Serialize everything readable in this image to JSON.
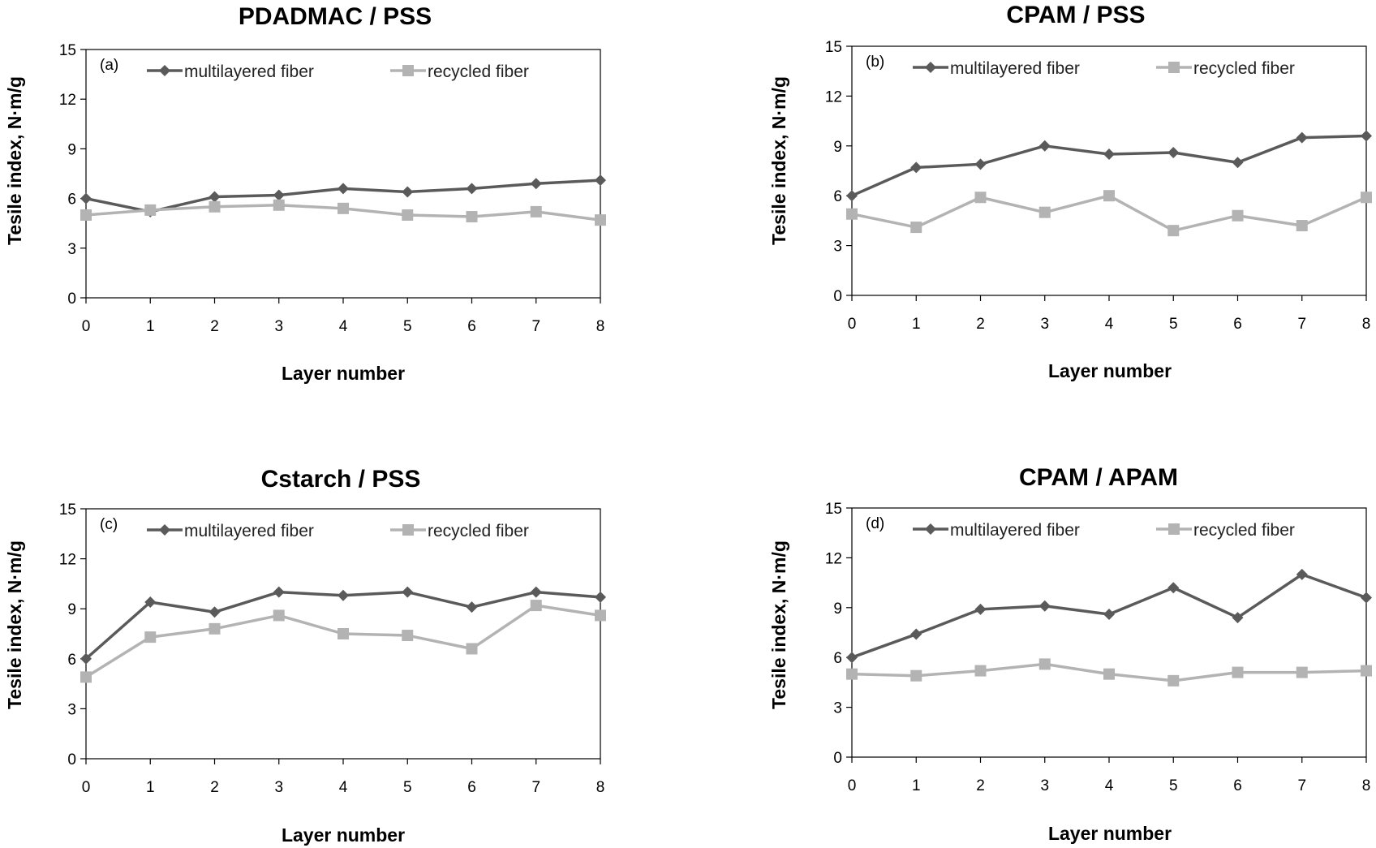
{
  "colors": {
    "multilayered": "#5a5a5a",
    "recycled": "#b3b3b3"
  },
  "chart_data": [
    {
      "type": "line",
      "title": "PDADMAC / PSS",
      "panel_label": "(a)",
      "xlabel": "Layer number",
      "ylabel": "Tesile index, N·m/g",
      "ylim": [
        0,
        15
      ],
      "yticks": [
        "0",
        "3",
        "6",
        "9",
        "12",
        "15"
      ],
      "x": [
        "0",
        "1",
        "2",
        "3",
        "4",
        "5",
        "6",
        "7",
        "8"
      ],
      "legend_position": "top",
      "series": [
        {
          "name": "multilayered fiber",
          "marker": "diamond",
          "values": [
            6.0,
            5.2,
            6.1,
            6.2,
            6.6,
            6.4,
            6.6,
            6.9,
            7.1
          ]
        },
        {
          "name": "recycled fiber",
          "marker": "square",
          "values": [
            5.0,
            5.3,
            5.5,
            5.6,
            5.4,
            5.0,
            4.9,
            5.2,
            4.7
          ]
        }
      ]
    },
    {
      "type": "line",
      "title": "CPAM / PSS",
      "panel_label": "(b)",
      "xlabel": "Layer number",
      "ylabel": "Tesile index, N·m/g",
      "ylim": [
        0,
        15
      ],
      "yticks": [
        "0",
        "3",
        "6",
        "9",
        "12",
        "15"
      ],
      "x": [
        "0",
        "1",
        "2",
        "3",
        "4",
        "5",
        "6",
        "7",
        "8"
      ],
      "legend_position": "top",
      "series": [
        {
          "name": "multilayered fiber",
          "marker": "diamond",
          "values": [
            6.0,
            7.7,
            7.9,
            9.0,
            8.5,
            8.6,
            8.0,
            9.5,
            9.6
          ]
        },
        {
          "name": "recycled fiber",
          "marker": "square",
          "values": [
            4.9,
            4.1,
            5.9,
            5.0,
            6.0,
            3.9,
            4.8,
            4.2,
            5.9
          ]
        }
      ]
    },
    {
      "type": "line",
      "title": "Cstarch / PSS",
      "panel_label": "(c)",
      "xlabel": "Layer number",
      "ylabel": "Tesile index, N·m/g",
      "ylim": [
        0,
        15
      ],
      "yticks": [
        "0",
        "3",
        "6",
        "9",
        "12",
        "15"
      ],
      "x": [
        "0",
        "1",
        "2",
        "3",
        "4",
        "5",
        "6",
        "7",
        "8"
      ],
      "legend_position": "top",
      "series": [
        {
          "name": "multilayered fiber",
          "marker": "diamond",
          "values": [
            6.0,
            9.4,
            8.8,
            10.0,
            9.8,
            10.0,
            9.1,
            10.0,
            9.7
          ]
        },
        {
          "name": "recycled fiber",
          "marker": "square",
          "values": [
            4.9,
            7.3,
            7.8,
            8.6,
            7.5,
            7.4,
            6.6,
            9.2,
            8.6
          ]
        }
      ]
    },
    {
      "type": "line",
      "title": "CPAM / APAM",
      "panel_label": "(d)",
      "xlabel": "Layer number",
      "ylabel": "Tesile index, N·m/g",
      "ylim": [
        0,
        15
      ],
      "yticks": [
        "0",
        "3",
        "6",
        "9",
        "12",
        "15"
      ],
      "x": [
        "0",
        "1",
        "2",
        "3",
        "4",
        "5",
        "6",
        "7",
        "8"
      ],
      "legend_position": "top",
      "series": [
        {
          "name": "multilayered fiber",
          "marker": "diamond",
          "values": [
            6.0,
            7.4,
            8.9,
            9.1,
            8.6,
            10.2,
            8.4,
            11.0,
            9.6
          ]
        },
        {
          "name": "recycled fiber",
          "marker": "square",
          "values": [
            5.0,
            4.9,
            5.2,
            5.6,
            5.0,
            4.6,
            5.1,
            5.1,
            5.2
          ]
        }
      ]
    }
  ]
}
